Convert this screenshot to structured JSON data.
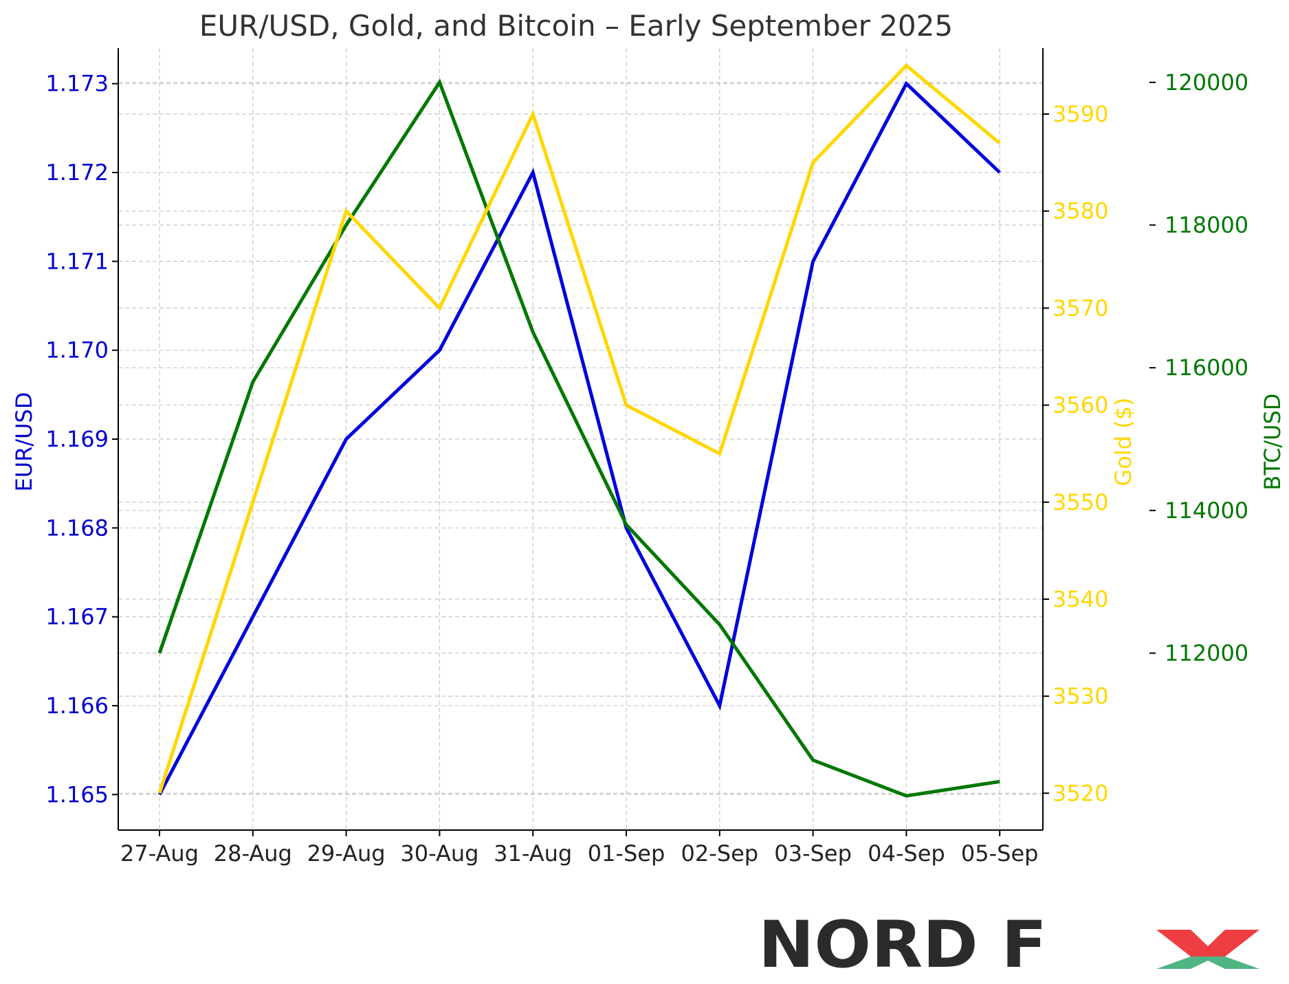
{
  "chart_data": {
    "type": "line",
    "title": "EUR/USD, Gold, and Bitcoin – Early September 2025",
    "categories": [
      "27-Aug",
      "28-Aug",
      "29-Aug",
      "30-Aug",
      "31-Aug",
      "01-Sep",
      "02-Sep",
      "03-Sep",
      "04-Sep",
      "05-Sep"
    ],
    "grid": true,
    "axes": {
      "left": {
        "label": "EUR/USD",
        "color": "#0000cc",
        "range": [
          1.1646,
          1.1734
        ],
        "ticks": [
          "1.165",
          "1.166",
          "1.167",
          "1.168",
          "1.169",
          "1.170",
          "1.171",
          "1.172",
          "1.173"
        ],
        "tick_values": [
          1.165,
          1.166,
          1.167,
          1.168,
          1.169,
          1.17,
          1.171,
          1.172,
          1.173
        ]
      },
      "gold": {
        "label": "Gold ($)",
        "color": "#ffd700",
        "range": [
          3516.2,
          3596.8
        ],
        "ticks": [
          "3520",
          "3530",
          "3540",
          "3550",
          "3560",
          "3570",
          "3580",
          "3590"
        ],
        "tick_values": [
          3520,
          3530,
          3540,
          3550,
          3560,
          3570,
          3580,
          3590
        ]
      },
      "btc": {
        "label": "BTC/USD",
        "color": "#007700",
        "range": [
          109520,
          120480
        ],
        "ticks": [
          "112000",
          "114000",
          "116000",
          "118000",
          "120000"
        ],
        "tick_values": [
          112000,
          114000,
          116000,
          118000,
          120000
        ]
      }
    },
    "series": [
      {
        "name": "EUR/USD",
        "axis": "left",
        "color": "#0000dd",
        "values": [
          1.165,
          1.167,
          1.169,
          1.17,
          1.172,
          1.168,
          1.166,
          1.171,
          1.173,
          1.172
        ]
      },
      {
        "name": "Gold ($)",
        "axis": "gold",
        "color": "#ffd700",
        "values": [
          3520,
          3550,
          3580,
          3570,
          3590,
          3560,
          3555,
          3585,
          3595,
          3587
        ]
      },
      {
        "name": "BTC/USD",
        "axis": "btc",
        "color": "#007700",
        "values": [
          112000,
          115800,
          118000,
          120000,
          116500,
          113800,
          112400,
          110500,
          110000,
          110200
        ]
      }
    ]
  },
  "logo": {
    "text": "NORD FX"
  }
}
